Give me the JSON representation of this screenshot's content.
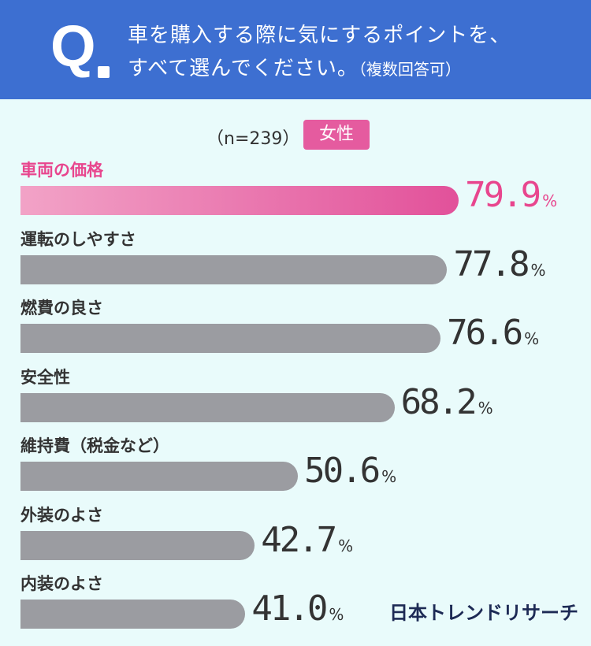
{
  "question": {
    "mark": "Q",
    "line1": "車を購入する際に気にするポイントを、",
    "line2_main": "すべて選んでください。",
    "line2_note": "（複数回答可）"
  },
  "sample_label": "（n=239）",
  "badge": "女性",
  "chart_data": {
    "type": "bar",
    "orientation": "horizontal",
    "categories": [
      "車両の価格",
      "運転のしやすさ",
      "燃費の良さ",
      "安全性",
      "維持費（税金など）",
      "外装のよさ",
      "内装のよさ"
    ],
    "values": [
      79.9,
      77.8,
      76.6,
      68.2,
      50.6,
      42.7,
      41.0
    ],
    "value_labels": [
      "79.9",
      "77.8",
      "76.6",
      "68.2",
      "50.6",
      "42.7",
      "41.0"
    ],
    "unit": "%",
    "highlight_index": 0,
    "colors": {
      "highlight_start": "#f2a3c7",
      "highlight_end": "#e2519a",
      "highlight_text": "#e8468e",
      "bar": "#9b9ca1"
    }
  },
  "logo": "日本トレンドリサーチ"
}
